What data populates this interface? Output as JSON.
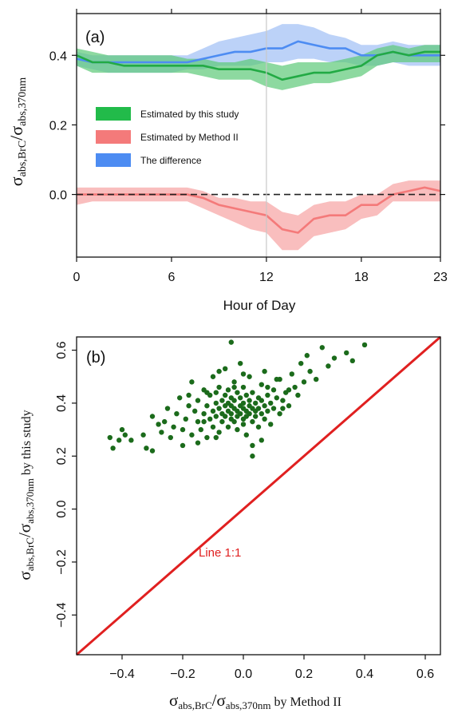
{
  "chart_data": [
    {
      "panel": "(a)",
      "type": "line",
      "x": [
        0,
        1,
        2,
        3,
        4,
        5,
        6,
        7,
        8,
        9,
        10,
        11,
        12,
        13,
        14,
        15,
        16,
        17,
        18,
        19,
        20,
        21,
        22,
        23
      ],
      "xlabel": "Hour of Day",
      "ylabel": {
        "symbol": "σ",
        "sub1": "abs,BrC",
        "slash": "/",
        "symbol2": "σ",
        "sub2": "abs,370nm"
      },
      "xlim": [
        0,
        23
      ],
      "ylim": [
        -0.18,
        0.52
      ],
      "xticks": [
        "0",
        "6",
        "12",
        "18",
        "23"
      ],
      "xtick_values": [
        0,
        6,
        12,
        18,
        23
      ],
      "yticks": [
        "0.0",
        "0.2",
        "0.4"
      ],
      "ytick_values": [
        0.0,
        0.2,
        0.4
      ],
      "reference_line": {
        "y": 0.0,
        "style": "dashed",
        "color": "#222222"
      },
      "vertical_line": {
        "x": 12,
        "color": "#c8c8c8"
      },
      "legend_placement": "middle-left",
      "grid": false,
      "series": [
        {
          "name": "Estimated by this study",
          "color": "#22aa44",
          "band_color": "#5cc977",
          "values": [
            0.4,
            0.38,
            0.38,
            0.37,
            0.37,
            0.37,
            0.37,
            0.37,
            0.37,
            0.36,
            0.36,
            0.36,
            0.35,
            0.33,
            0.34,
            0.35,
            0.35,
            0.36,
            0.37,
            0.4,
            0.41,
            0.4,
            0.41,
            0.41
          ],
          "lower": [
            0.37,
            0.35,
            0.35,
            0.35,
            0.35,
            0.35,
            0.35,
            0.35,
            0.34,
            0.33,
            0.33,
            0.33,
            0.31,
            0.3,
            0.31,
            0.32,
            0.32,
            0.33,
            0.34,
            0.37,
            0.38,
            0.38,
            0.38,
            0.38
          ],
          "upper": [
            0.42,
            0.41,
            0.4,
            0.4,
            0.4,
            0.4,
            0.4,
            0.39,
            0.39,
            0.38,
            0.38,
            0.39,
            0.38,
            0.37,
            0.38,
            0.38,
            0.38,
            0.39,
            0.4,
            0.42,
            0.43,
            0.42,
            0.43,
            0.43
          ]
        },
        {
          "name": "Estimated by Method II",
          "color": "#f47a7a",
          "band_color": "#f6a3a3",
          "values": [
            0.0,
            0.0,
            0.0,
            0.0,
            0.0,
            0.0,
            0.0,
            0.0,
            -0.01,
            -0.03,
            -0.04,
            -0.05,
            -0.06,
            -0.1,
            -0.11,
            -0.07,
            -0.06,
            -0.06,
            -0.03,
            -0.03,
            0.0,
            0.01,
            0.02,
            0.01
          ],
          "lower": [
            -0.03,
            -0.02,
            -0.02,
            -0.02,
            -0.02,
            -0.02,
            -0.02,
            -0.02,
            -0.04,
            -0.06,
            -0.08,
            -0.1,
            -0.11,
            -0.16,
            -0.16,
            -0.12,
            -0.11,
            -0.1,
            -0.07,
            -0.06,
            -0.02,
            -0.02,
            -0.02,
            -0.02
          ],
          "upper": [
            0.02,
            0.02,
            0.02,
            0.02,
            0.02,
            0.02,
            0.02,
            0.02,
            0.01,
            -0.01,
            -0.01,
            -0.02,
            -0.02,
            -0.05,
            -0.06,
            -0.03,
            -0.02,
            -0.02,
            0.0,
            0.0,
            0.03,
            0.04,
            0.04,
            0.04
          ]
        },
        {
          "name": "The difference",
          "color": "#4d8cf2",
          "band_color": "#9fbff5",
          "values": [
            0.39,
            0.38,
            0.38,
            0.38,
            0.38,
            0.38,
            0.38,
            0.38,
            0.39,
            0.4,
            0.41,
            0.41,
            0.42,
            0.42,
            0.44,
            0.43,
            0.42,
            0.42,
            0.4,
            0.4,
            0.41,
            0.4,
            0.4,
            0.4
          ],
          "lower": [
            0.37,
            0.36,
            0.35,
            0.35,
            0.35,
            0.35,
            0.35,
            0.36,
            0.36,
            0.37,
            0.37,
            0.37,
            0.38,
            0.38,
            0.39,
            0.39,
            0.38,
            0.38,
            0.37,
            0.37,
            0.38,
            0.37,
            0.37,
            0.37
          ],
          "upper": [
            0.41,
            0.4,
            0.4,
            0.4,
            0.4,
            0.4,
            0.4,
            0.4,
            0.42,
            0.44,
            0.45,
            0.46,
            0.47,
            0.49,
            0.49,
            0.48,
            0.46,
            0.45,
            0.43,
            0.43,
            0.44,
            0.43,
            0.43,
            0.43
          ]
        }
      ]
    },
    {
      "panel": "(b)",
      "type": "scatter",
      "xlabel": {
        "symbol": "σ",
        "sub1": "abs,BrC",
        "slash": "/",
        "symbol2": "σ",
        "sub2": "abs,370nm",
        "suffix": " by Method II"
      },
      "ylabel": {
        "symbol": "σ",
        "sub1": "abs,BrC",
        "slash": "/",
        "symbol2": "σ",
        "sub2": "abs,370nm",
        "suffix": " by this study"
      },
      "xlim": [
        -0.55,
        0.65
      ],
      "ylim": [
        -0.55,
        0.65
      ],
      "xticks": [
        "−0.4",
        "−0.2",
        "0.0",
        "0.2",
        "0.4",
        "0.6"
      ],
      "xtick_values": [
        -0.4,
        -0.2,
        0.0,
        0.2,
        0.4,
        0.6
      ],
      "yticks": [
        "−0.4",
        "−0.2",
        "0.0",
        "0.2",
        "0.4",
        "0.6"
      ],
      "ytick_values": [
        -0.4,
        -0.2,
        0.0,
        0.2,
        0.4,
        0.6
      ],
      "point_color": "#1b6b1b",
      "reference_line": {
        "label": "Line 1:1",
        "color": "#e02020",
        "from": [
          -0.55,
          -0.55
        ],
        "to": [
          0.65,
          0.65
        ]
      },
      "grid": false,
      "points": [
        [
          -0.44,
          0.27
        ],
        [
          -0.43,
          0.23
        ],
        [
          -0.41,
          0.26
        ],
        [
          -0.4,
          0.3
        ],
        [
          -0.39,
          0.28
        ],
        [
          -0.37,
          0.26
        ],
        [
          -0.33,
          0.28
        ],
        [
          -0.32,
          0.23
        ],
        [
          -0.3,
          0.35
        ],
        [
          -0.28,
          0.32
        ],
        [
          -0.27,
          0.29
        ],
        [
          -0.26,
          0.33
        ],
        [
          -0.25,
          0.38
        ],
        [
          -0.24,
          0.27
        ],
        [
          -0.23,
          0.31
        ],
        [
          -0.22,
          0.36
        ],
        [
          -0.21,
          0.42
        ],
        [
          -0.2,
          0.3
        ],
        [
          -0.19,
          0.34
        ],
        [
          -0.18,
          0.39
        ],
        [
          -0.17,
          0.48
        ],
        [
          -0.17,
          0.28
        ],
        [
          -0.16,
          0.37
        ],
        [
          -0.15,
          0.33
        ],
        [
          -0.15,
          0.41
        ],
        [
          -0.14,
          0.3
        ],
        [
          -0.13,
          0.45
        ],
        [
          -0.13,
          0.36
        ],
        [
          -0.12,
          0.39
        ],
        [
          -0.12,
          0.27
        ],
        [
          -0.11,
          0.43
        ],
        [
          -0.11,
          0.34
        ],
        [
          -0.1,
          0.5
        ],
        [
          -0.1,
          0.37
        ],
        [
          -0.1,
          0.31
        ],
        [
          -0.09,
          0.4
        ],
        [
          -0.09,
          0.35
        ],
        [
          -0.09,
          0.44
        ],
        [
          -0.08,
          0.38
        ],
        [
          -0.08,
          0.29
        ],
        [
          -0.08,
          0.46
        ],
        [
          -0.07,
          0.36
        ],
        [
          -0.07,
          0.41
        ],
        [
          -0.07,
          0.33
        ],
        [
          -0.06,
          0.39
        ],
        [
          -0.06,
          0.53
        ],
        [
          -0.06,
          0.35
        ],
        [
          -0.06,
          0.43
        ],
        [
          -0.05,
          0.37
        ],
        [
          -0.05,
          0.31
        ],
        [
          -0.05,
          0.4
        ],
        [
          -0.05,
          0.45
        ],
        [
          -0.04,
          0.36
        ],
        [
          -0.04,
          0.42
        ],
        [
          -0.04,
          0.34
        ],
        [
          -0.04,
          0.39
        ],
        [
          -0.03,
          0.38
        ],
        [
          -0.03,
          0.48
        ],
        [
          -0.03,
          0.33
        ],
        [
          -0.03,
          0.41
        ],
        [
          -0.02,
          0.37
        ],
        [
          -0.02,
          0.35
        ],
        [
          -0.02,
          0.44
        ],
        [
          -0.02,
          0.3
        ],
        [
          -0.01,
          0.39
        ],
        [
          -0.01,
          0.36
        ],
        [
          -0.01,
          0.42
        ],
        [
          -0.01,
          0.55
        ],
        [
          0.0,
          0.38
        ],
        [
          0.0,
          0.34
        ],
        [
          0.0,
          0.4
        ],
        [
          0.0,
          0.46
        ],
        [
          0.0,
          0.32
        ],
        [
          0.01,
          0.37
        ],
        [
          0.01,
          0.43
        ],
        [
          0.01,
          0.35
        ],
        [
          0.01,
          0.28
        ],
        [
          0.02,
          0.39
        ],
        [
          0.02,
          0.36
        ],
        [
          0.02,
          0.41
        ],
        [
          0.02,
          0.5
        ],
        [
          0.03,
          0.38
        ],
        [
          0.03,
          0.33
        ],
        [
          0.03,
          0.44
        ],
        [
          0.03,
          0.24
        ],
        [
          0.04,
          0.37
        ],
        [
          0.04,
          0.4
        ],
        [
          0.04,
          0.35
        ],
        [
          0.05,
          0.42
        ],
        [
          0.05,
          0.31
        ],
        [
          0.05,
          0.38
        ],
        [
          0.06,
          0.47
        ],
        [
          0.06,
          0.36
        ],
        [
          0.06,
          0.41
        ],
        [
          0.07,
          0.39
        ],
        [
          0.07,
          0.34
        ],
        [
          0.07,
          0.52
        ],
        [
          0.08,
          0.37
        ],
        [
          0.08,
          0.43
        ],
        [
          0.09,
          0.4
        ],
        [
          0.09,
          0.32
        ],
        [
          0.1,
          0.45
        ],
        [
          0.1,
          0.38
        ],
        [
          0.11,
          0.42
        ],
        [
          0.12,
          0.36
        ],
        [
          0.12,
          0.49
        ],
        [
          0.13,
          0.41
        ],
        [
          0.14,
          0.44
        ],
        [
          0.15,
          0.39
        ],
        [
          0.16,
          0.51
        ],
        [
          0.17,
          0.46
        ],
        [
          0.18,
          0.43
        ],
        [
          0.19,
          0.55
        ],
        [
          0.2,
          0.48
        ],
        [
          0.21,
          0.58
        ],
        [
          0.22,
          0.52
        ],
        [
          0.24,
          0.49
        ],
        [
          0.26,
          0.61
        ],
        [
          0.28,
          0.54
        ],
        [
          0.3,
          0.57
        ],
        [
          0.34,
          0.59
        ],
        [
          0.36,
          0.56
        ],
        [
          0.4,
          0.62
        ],
        [
          -0.04,
          0.63
        ],
        [
          0.03,
          0.2
        ],
        [
          -0.15,
          0.25
        ],
        [
          -0.2,
          0.24
        ],
        [
          -0.09,
          0.27
        ],
        [
          0.06,
          0.26
        ],
        [
          -0.3,
          0.22
        ],
        [
          -0.12,
          0.44
        ],
        [
          -0.03,
          0.46
        ],
        [
          0.08,
          0.46
        ],
        [
          0.13,
          0.38
        ],
        [
          -0.18,
          0.43
        ],
        [
          -0.08,
          0.52
        ],
        [
          0.0,
          0.51
        ],
        [
          0.11,
          0.49
        ],
        [
          -0.13,
          0.33
        ],
        [
          0.15,
          0.45
        ]
      ]
    }
  ]
}
